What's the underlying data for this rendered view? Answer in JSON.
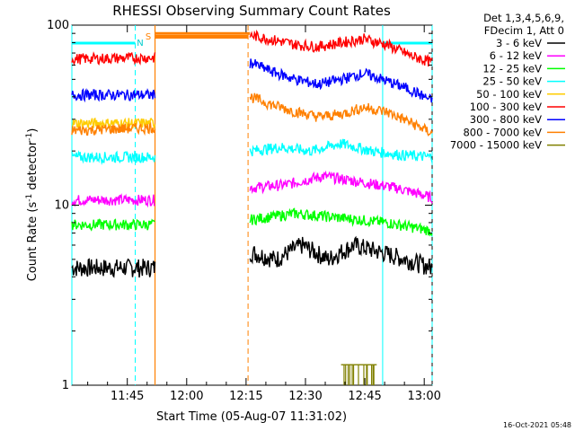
{
  "chart_data": {
    "type": "line",
    "title": "RHESSI Observing Summary Count Rates",
    "xlabel": "Start Time (05-Aug-07 11:31:02)",
    "ylabel": "Count Rate (s⁻¹ detector⁻¹)",
    "ylabel_main": "Count Rate (s",
    "ylabel_sup1": "-1",
    "ylabel_mid": " detector",
    "ylabel_sup2": "-1",
    "ylabel_end": ")",
    "ylog": true,
    "ylim": [
      1,
      100
    ],
    "x_ticks": [
      "11:45",
      "12:00",
      "12:15",
      "12:30",
      "12:45",
      "13:00"
    ],
    "y_ticks": [
      "1",
      "10",
      "100"
    ],
    "legend_header": [
      "Det 1,3,4,5,6,9,",
      "FDecim 1, Att 0"
    ],
    "timestamp": "16-Oct-2021 05:48",
    "flags": {
      "N": "N",
      "S": "S"
    },
    "legend": [
      {
        "name": "3 - 6 keV",
        "color": "#000000"
      },
      {
        "name": "6 - 12 keV",
        "color": "#ff00ff"
      },
      {
        "name": "12 - 25 keV",
        "color": "#00ff00"
      },
      {
        "name": "25 - 50 keV",
        "color": "#00ffff"
      },
      {
        "name": "50 - 100 keV",
        "color": "#ffcc00"
      },
      {
        "name": "100 - 300 keV",
        "color": "#ff0000"
      },
      {
        "name": "300 - 800 keV",
        "color": "#0000ff"
      },
      {
        "name": "800 - 7000 keV",
        "color": "#ff8000"
      },
      {
        "name": "7000 - 15000 keV",
        "color": "#808000"
      }
    ],
    "series": [
      {
        "name": "3 - 6 keV",
        "color": "#000000",
        "segments": [
          {
            "t": [
              0,
              21
            ],
            "v": [
              4.5,
              4.5
            ]
          },
          {
            "t": [
              45,
              91
            ],
            "v": [
              5.5,
              5.0,
              6.0,
              5.0,
              6.0,
              5.5,
              5.0,
              4.5
            ]
          }
        ]
      },
      {
        "name": "6 - 12 keV",
        "color": "#ff00ff",
        "segments": [
          {
            "t": [
              0,
              21
            ],
            "v": [
              10.7,
              10.7
            ]
          },
          {
            "t": [
              45,
              91
            ],
            "v": [
              12.5,
              13.0,
              14.5,
              13.5,
              12.5,
              11.0
            ]
          }
        ]
      },
      {
        "name": "12 - 25 keV",
        "color": "#00ff00",
        "segments": [
          {
            "t": [
              0,
              21
            ],
            "v": [
              7.8,
              7.8
            ]
          },
          {
            "t": [
              45,
              91
            ],
            "v": [
              8.3,
              9.0,
              8.5,
              8.0,
              7.2
            ]
          }
        ]
      },
      {
        "name": "25 - 50 keV",
        "color": "#00ffff",
        "segments": [
          {
            "t": [
              0,
              21
            ],
            "v": [
              18.5,
              18.5
            ]
          },
          {
            "t": [
              45,
              91
            ],
            "v": [
              20,
              21,
              20,
              22,
              20,
              19,
              18.5
            ]
          }
        ]
      },
      {
        "name": "50 - 100 keV",
        "color": "#ffcc00",
        "segments": [
          {
            "t": [
              0,
              21
            ],
            "v": [
              28.5,
              28.5
            ]
          }
        ]
      },
      {
        "name": "100 - 300 keV",
        "color": "#ff0000",
        "segments": [
          {
            "t": [
              0,
              21
            ],
            "v": [
              65,
              66
            ]
          },
          {
            "t": [
              45,
              91
            ],
            "v": [
              88,
              83,
              78,
              76,
              80,
              84,
              78,
              68,
              62
            ]
          }
        ]
      },
      {
        "name": "300 - 800 keV",
        "color": "#0000ff",
        "segments": [
          {
            "t": [
              0,
              21
            ],
            "v": [
              41,
              41
            ]
          },
          {
            "t": [
              45,
              91
            ],
            "v": [
              62,
              55,
              50,
              47,
              50,
              54,
              49,
              44,
              38
            ]
          }
        ]
      },
      {
        "name": "800 - 7000 keV",
        "color": "#ff8000",
        "segments": [
          {
            "t": [
              0,
              21
            ],
            "v": [
              26,
              27
            ]
          },
          {
            "t": [
              21,
              45
            ],
            "v": [
              90,
              90
            ]
          },
          {
            "t": [
              45,
              91
            ],
            "v": [
              40,
              36,
              33,
              31,
              32,
              35,
              33,
              29,
              25
            ]
          }
        ]
      },
      {
        "name": "7000 - 15000 keV",
        "color": "#808000",
        "segments": [
          {
            "t": [
              68,
              77
            ],
            "v": [
              1.3,
              1.3
            ]
          }
        ]
      }
    ],
    "markers": {
      "night_lines_min": [
        0,
        78.5
      ],
      "cyan_dashed_min": [
        16,
        91
      ],
      "orange_solid_min": [
        21
      ],
      "orange_dashed_min": [
        44.5
      ],
      "saa_bar_min": [
        21,
        44.5
      ],
      "night_bar_min": [
        [
          0,
          16
        ],
        [
          78.5,
          91
        ]
      ]
    },
    "x_range_min": [
      0,
      91
    ],
    "x_tick_min": [
      14,
      29,
      44,
      59,
      74,
      89
    ]
  }
}
